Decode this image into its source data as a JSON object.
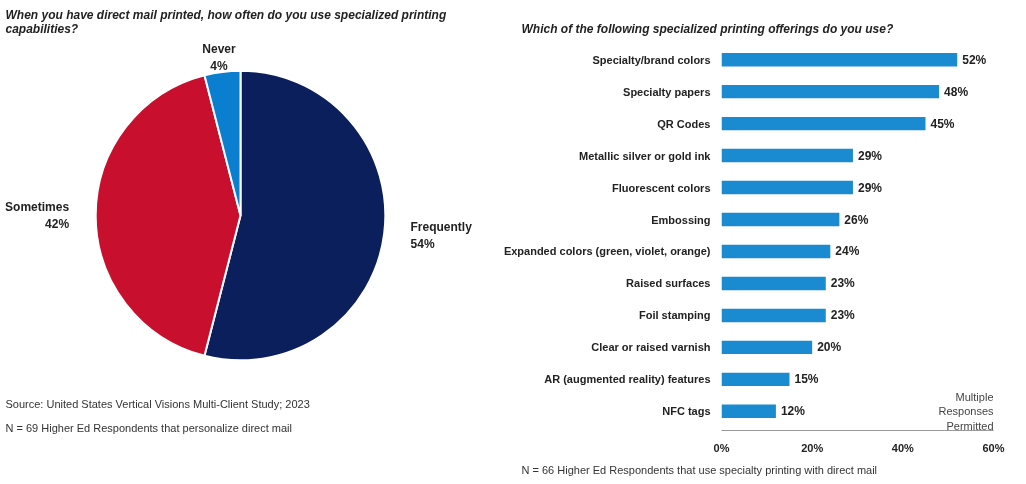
{
  "chart_data": [
    {
      "type": "pie",
      "title": "When you have direct mail printed, how often do you use specialized printing capabilities?",
      "categories": [
        "Frequently",
        "Sometimes",
        "Never"
      ],
      "values": [
        54,
        42,
        4
      ],
      "colors": [
        "#0b1f5c",
        "#c8102e",
        "#0a7fcf"
      ],
      "value_labels": [
        "54%",
        "42%",
        "4%"
      ],
      "legend": false,
      "annotations": [
        "N = 69 Higher Ed Respondents that personalize direct mail",
        "Source: United States Vertical Visions Multi-Client Study; 2023"
      ]
    },
    {
      "type": "bar",
      "orientation": "horizontal",
      "title": "Which of the following specialized printing offerings do you use?",
      "categories": [
        "Specialty/brand colors",
        "Specialty papers",
        "QR Codes",
        "Metallic silver or gold ink",
        "Fluorescent colors",
        "Embossing",
        "Expanded colors (green, violet, orange)",
        "Raised surfaces",
        "Foil stamping",
        "Clear or raised varnish",
        "AR (augmented reality) features",
        "NFC tags"
      ],
      "values": [
        52,
        48,
        45,
        29,
        29,
        26,
        24,
        23,
        23,
        20,
        15,
        12
      ],
      "value_labels": [
        "52%",
        "48%",
        "45%",
        "29%",
        "29%",
        "26%",
        "24%",
        "23%",
        "23%",
        "20%",
        "15%",
        "12%"
      ],
      "color": "#1a8bd0",
      "xlim": [
        0,
        60
      ],
      "xticks": [
        {
          "value": 0,
          "label": "0%"
        },
        {
          "value": 20,
          "label": "20%"
        },
        {
          "value": 40,
          "label": "40%"
        },
        {
          "value": 60,
          "label": "60%"
        }
      ],
      "grid": false,
      "legend": false,
      "annotations": [
        "Multiple Responses Permitted",
        "N = 66 Higher Ed Respondents that use specialty printing with direct mail"
      ]
    }
  ]
}
